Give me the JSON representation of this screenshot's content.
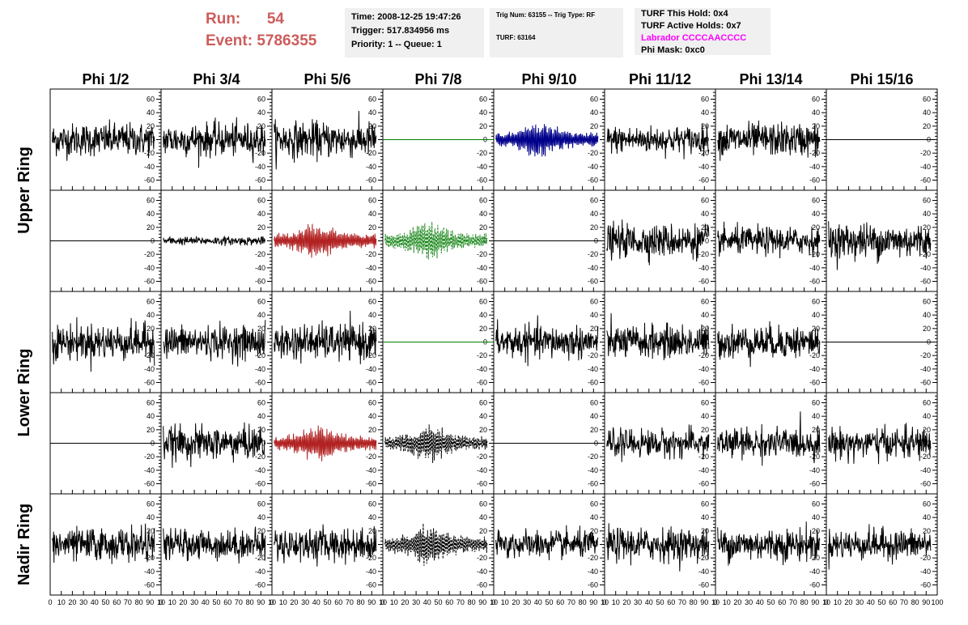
{
  "header": {
    "run_label": "Run:",
    "run_value": "54",
    "event_label": "Event:",
    "event_value": "5786355",
    "time": "Time: 2008-12-25 19:47:26",
    "trigger": "Trigger: 517.834956 ms",
    "priority": "Priority: 1 -- Queue: 1",
    "trig_num": "Trig Num: 63155 -- Trig Type: RF",
    "turf": "TURF: 63164",
    "turf_hold": "TURF This Hold: 0x4",
    "turf_active": "TURF Active Holds: 0x7",
    "labrador": "Labrador CCCCAACCCC",
    "phi_mask": "Phi Mask: 0xc0",
    "labrador_color": "#ff00ff",
    "run_color": "#cd5c5c"
  },
  "chart_data": {
    "type": "line",
    "columns": [
      "Phi 1/2",
      "Phi 3/4",
      "Phi 5/6",
      "Phi 7/8",
      "Phi 9/10",
      "Phi 11/12",
      "Phi 13/14",
      "Phi 15/16"
    ],
    "ring_labels": [
      "Upper Ring",
      "Lower Ring",
      "Nadir Ring"
    ],
    "ylim": [
      -75,
      75
    ],
    "xlim": [
      0,
      100
    ],
    "y_ticks": [
      -60,
      -40,
      -20,
      0,
      20,
      40,
      60
    ],
    "x_ticks": [
      0,
      10,
      20,
      30,
      40,
      50,
      60,
      70,
      80,
      90,
      100
    ],
    "x_tick_labels": [
      [
        "0",
        "10",
        "20",
        "30",
        "40",
        "50",
        "60",
        "70",
        "80",
        "90",
        "10"
      ],
      [
        "0",
        "10",
        "20",
        "30",
        "40",
        "50",
        "60",
        "70",
        "80",
        "90",
        "10"
      ],
      [
        "0",
        "10",
        "20",
        "30",
        "40",
        "50",
        "60",
        "70",
        "80",
        "90",
        "10"
      ],
      [
        "0",
        "10",
        "20",
        "30",
        "40",
        "50",
        "60",
        "70",
        "80",
        "90",
        "10"
      ],
      [
        "0",
        "10",
        "20",
        "30",
        "40",
        "50",
        "60",
        "70",
        "80",
        "90",
        "10"
      ],
      [
        "0",
        "10",
        "20",
        "30",
        "40",
        "50",
        "60",
        "70",
        "80",
        "90",
        "10"
      ],
      [
        "0",
        "10",
        "20",
        "30",
        "40",
        "50",
        "60",
        "70",
        "80",
        "90",
        "10"
      ],
      [
        "0",
        "10",
        "20",
        "30",
        "40",
        "50",
        "60",
        "70",
        "80",
        "90",
        "100"
      ]
    ],
    "colors": {
      "normal": "#000000",
      "flat": "#008000",
      "red": "#b22222",
      "blue": "#00008b",
      "green": "#228b22"
    },
    "channels": [
      [
        "noise",
        "noise",
        "noise",
        "flat",
        "blue",
        "noise",
        "noise",
        "flatblack"
      ],
      [
        "flatblack",
        "small",
        "red",
        "green",
        "flatblack",
        "noise",
        "noise",
        "noise"
      ],
      [
        "noise",
        "noise",
        "noise",
        "flat",
        "noise",
        "noise",
        "noise",
        "flatblack"
      ],
      [
        "flatblack",
        "noise",
        "red",
        "dashed",
        "flatblack",
        "noise",
        "noise",
        "noise"
      ],
      [
        "noise",
        "noise",
        "noise",
        "dashed",
        "noise",
        "noise",
        "noise",
        "noise"
      ]
    ],
    "amplitudes": [
      [
        12,
        12,
        13,
        0,
        14,
        10,
        12,
        0
      ],
      [
        0,
        3,
        14,
        14,
        0,
        12,
        10,
        13
      ],
      [
        13,
        12,
        13,
        0,
        12,
        12,
        12,
        0
      ],
      [
        0,
        12,
        14,
        14,
        0,
        10,
        11,
        11
      ],
      [
        12,
        11,
        12,
        16,
        10,
        12,
        12,
        11
      ]
    ],
    "grid": false
  }
}
